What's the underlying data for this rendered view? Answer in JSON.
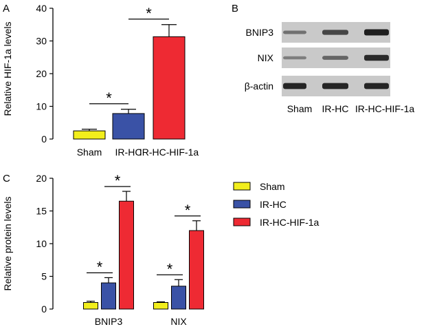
{
  "panels": {
    "a": "A",
    "b": "B",
    "c": "C"
  },
  "colors": {
    "sham": "#f2ee1c",
    "ir_hc": "#3a52a6",
    "ir_hc_hif": "#ee2a33",
    "blot_bg": "#c9c9c9",
    "band": "#1e1e1e"
  },
  "significance_marker": "*",
  "chart_data": [
    {
      "type": "bar",
      "panel": "A",
      "categories": [
        "Sham",
        "IR-HC",
        "IR-HC-HIF-1a"
      ],
      "values": [
        2.5,
        7.8,
        31.3
      ],
      "errors": [
        0.5,
        1.3,
        3.7
      ],
      "ylabel": "Relative HIF-1a levels",
      "ylim": [
        0,
        40
      ],
      "yticks": [
        0,
        10,
        20,
        30,
        40
      ],
      "significance": [
        {
          "between": [
            "Sham",
            "IR-HC"
          ],
          "label": "*"
        },
        {
          "between": [
            "IR-HC",
            "IR-HC-HIF-1a"
          ],
          "label": "*"
        }
      ]
    },
    {
      "type": "bar",
      "panel": "C",
      "categories": [
        "BNIP3",
        "NIX"
      ],
      "series": [
        {
          "name": "Sham",
          "values": [
            1.0,
            1.0
          ],
          "errors": [
            0.2,
            0.1
          ]
        },
        {
          "name": "IR-HC",
          "values": [
            4.0,
            3.5
          ],
          "errors": [
            0.8,
            1.0
          ]
        },
        {
          "name": "IR-HC-HIF-1a",
          "values": [
            16.5,
            12.0
          ],
          "errors": [
            1.5,
            1.5
          ]
        }
      ],
      "ylabel": "Relative protein levels",
      "ylim": [
        0,
        20
      ],
      "yticks": [
        0,
        5,
        10,
        15,
        20
      ],
      "legend_position": "top-right",
      "significance": [
        {
          "group": "BNIP3",
          "between": [
            "Sham",
            "IR-HC"
          ],
          "label": "*"
        },
        {
          "group": "BNIP3",
          "between": [
            "IR-HC",
            "IR-HC-HIF-1a"
          ],
          "label": "*"
        },
        {
          "group": "NIX",
          "between": [
            "Sham",
            "IR-HC"
          ],
          "label": "*"
        },
        {
          "group": "NIX",
          "between": [
            "IR-HC",
            "IR-HC-HIF-1a"
          ],
          "label": "*"
        }
      ]
    }
  ],
  "western_blot": {
    "rows": [
      {
        "label": "BNIP3",
        "intensities": [
          0.35,
          0.7,
          1.0
        ]
      },
      {
        "label": "NIX",
        "intensities": [
          0.25,
          0.45,
          0.9
        ]
      },
      {
        "label": "β-actin",
        "intensities": [
          0.95,
          0.95,
          0.95
        ]
      }
    ],
    "lanes": [
      "Sham",
      "IR-HC",
      "IR-HC-HIF-1a"
    ]
  }
}
